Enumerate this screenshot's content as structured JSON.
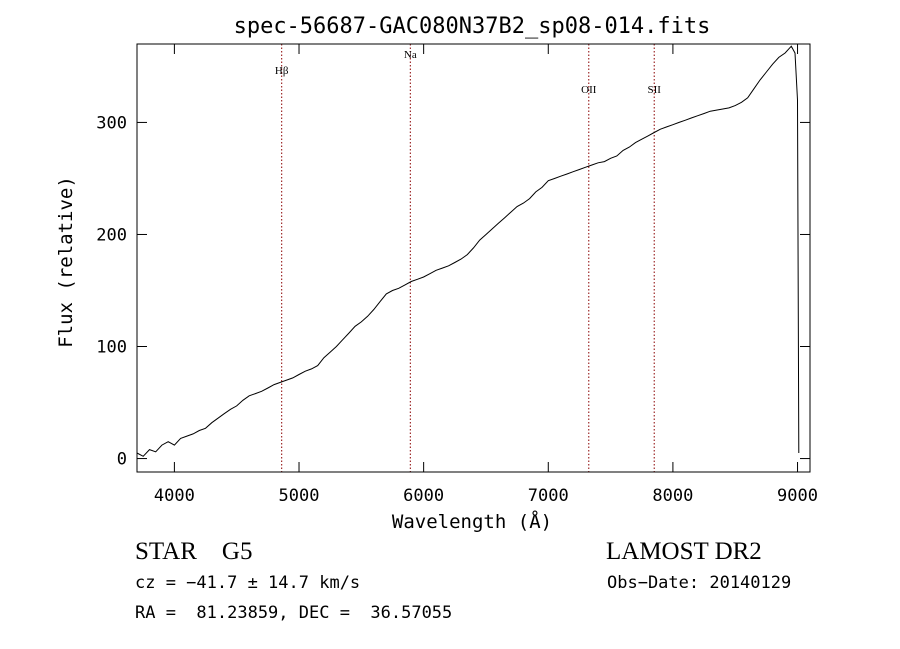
{
  "chart_data": {
    "type": "line",
    "title": "spec-56687-GAC080N37B2_sp08-014.fits",
    "xlabel": "Wavelength (Å)",
    "ylabel": "Flux (relative)",
    "xlim": [
      3700,
      9100
    ],
    "ylim": [
      -12,
      370
    ],
    "x_ticks": [
      4000,
      5000,
      6000,
      7000,
      8000,
      9000
    ],
    "y_ticks": [
      0,
      100,
      200,
      300
    ],
    "grid": false,
    "color": "#000000",
    "line_marker_color": "#8b0000",
    "series": [
      {
        "x": [
          3700,
          3750,
          3800,
          3850,
          3900,
          3950,
          4000,
          4050,
          4100,
          4150,
          4200,
          4250,
          4300,
          4350,
          4400,
          4450,
          4500,
          4550,
          4600,
          4650,
          4700,
          4750,
          4800,
          4850,
          4900,
          4950,
          5000,
          5050,
          5100,
          5150,
          5200,
          5250,
          5300,
          5350,
          5400,
          5450,
          5500,
          5550,
          5600,
          5650,
          5700,
          5750,
          5800,
          5850,
          5900,
          5950,
          6000,
          6050,
          6100,
          6150,
          6200,
          6250,
          6300,
          6350,
          6400,
          6450,
          6500,
          6550,
          6600,
          6650,
          6700,
          6750,
          6800,
          6850,
          6900,
          6950,
          7000,
          7050,
          7100,
          7150,
          7200,
          7250,
          7300,
          7350,
          7400,
          7450,
          7500,
          7550,
          7600,
          7650,
          7700,
          7750,
          7800,
          7850,
          7900,
          7950,
          8000,
          8050,
          8100,
          8150,
          8200,
          8250,
          8300,
          8350,
          8400,
          8450,
          8500,
          8550,
          8600,
          8650,
          8700,
          8750,
          8800,
          8850,
          8900,
          8950,
          8980,
          9000,
          9010
        ],
        "y": [
          5,
          2,
          8,
          6,
          12,
          15,
          12,
          18,
          20,
          22,
          25,
          27,
          32,
          36,
          40,
          44,
          47,
          52,
          56,
          58,
          60,
          63,
          66,
          68,
          70,
          72,
          75,
          78,
          80,
          83,
          90,
          95,
          100,
          106,
          112,
          118,
          122,
          127,
          133,
          140,
          147,
          150,
          152,
          155,
          158,
          160,
          162,
          165,
          168,
          170,
          172,
          175,
          178,
          182,
          188,
          195,
          200,
          205,
          210,
          215,
          220,
          225,
          228,
          232,
          238,
          242,
          248,
          250,
          252,
          254,
          256,
          258,
          260,
          262,
          264,
          265,
          268,
          270,
          275,
          278,
          282,
          285,
          288,
          291,
          294,
          296,
          298,
          300,
          302,
          304,
          306,
          308,
          310,
          311,
          312,
          313,
          315,
          318,
          322,
          330,
          338,
          345,
          352,
          358,
          362,
          368,
          362,
          320,
          5
        ]
      }
    ],
    "spectral_lines": [
      {
        "label": "Hβ",
        "x": 4861
      },
      {
        "label": "Na",
        "x": 5893
      },
      {
        "label": "OII",
        "x": 7325
      },
      {
        "label": "SII",
        "x": 7850
      }
    ]
  },
  "info": {
    "class_text": "STAR    G5",
    "survey": "LAMOST DR2",
    "cz": "cz = −41.7 ± 14.7 km/s",
    "obs_date": "Obs−Date: 20140129",
    "radec": "RA =  81.23859, DEC =  36.57055"
  }
}
